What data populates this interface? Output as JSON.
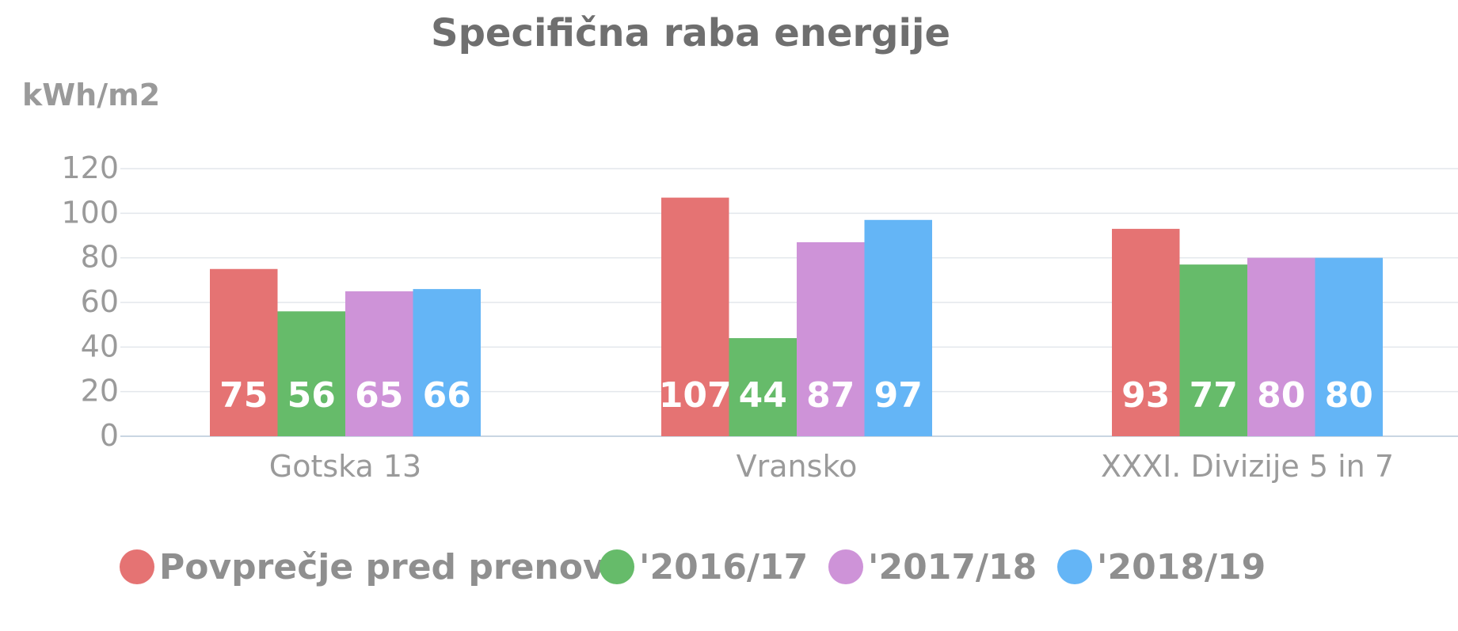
{
  "chart_data": {
    "type": "bar",
    "title": "Specifična raba energije",
    "ylabel": "kWh/m2",
    "xlabel": "",
    "ylim": [
      0,
      120
    ],
    "yticks": [
      "0",
      "20",
      "40",
      "60",
      "80",
      "100",
      "120"
    ],
    "grid": true,
    "legend_position": "bottom",
    "categories": [
      "Gotska 13",
      "Vransko",
      "XXXI. Divizije 5 in 7"
    ],
    "series": [
      {
        "name": "Povprečje pred prenovo",
        "color": "#e57373",
        "values": [
          75,
          107,
          93
        ]
      },
      {
        "name": "'2016/17",
        "color": "#66bb6a",
        "values": [
          56,
          44,
          77
        ]
      },
      {
        "name": "'2017/18",
        "color": "#ce93d8",
        "values": [
          65,
          87,
          80
        ]
      },
      {
        "name": "'2018/19",
        "color": "#64b5f6",
        "values": [
          66,
          97,
          80
        ]
      }
    ]
  }
}
